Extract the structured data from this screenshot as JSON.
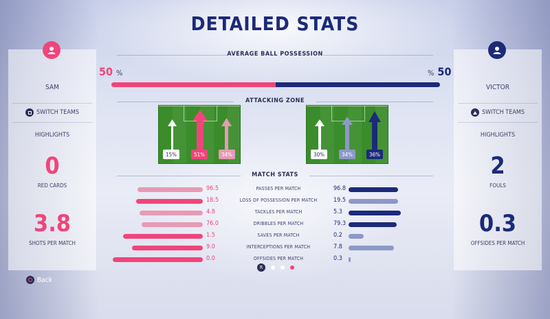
{
  "title": "DETAILED STATS",
  "colors": {
    "home": "#f0457a",
    "home_light": "#e79ab5",
    "away": "#1c2a7a",
    "away_light": "#8e98c8"
  },
  "players": {
    "home": {
      "name": "SAM",
      "switch_label": "SWITCH TEAMS",
      "highlights_label": "HIGHLIGHTS",
      "highlight1_value": "0",
      "highlight1_label": "RED CARDS",
      "highlight2_value": "3.8",
      "highlight2_label": "SHOTS PER MATCH"
    },
    "away": {
      "name": "VICTOR",
      "switch_label": "SWITCH TEAMS",
      "highlights_label": "HIGHLIGHTS",
      "highlight1_value": "2",
      "highlight1_label": "FOULS",
      "highlight2_value": "0.3",
      "highlight2_label": "OFFSIDES PER MATCH"
    }
  },
  "possession": {
    "title": "AVERAGE BALL POSSESSION",
    "home_value": "50",
    "away_value": "50",
    "pct_symbol": "%",
    "home_fraction": 0.5
  },
  "attacking_zone": {
    "title": "ATTACKING ZONE",
    "home": [
      "15%",
      "51%",
      "34%"
    ],
    "away": [
      "30%",
      "34%",
      "36%"
    ]
  },
  "match_stats": {
    "title": "MATCH STATS",
    "rows": [
      {
        "label": "PASSES PER MATCH",
        "home": "96.5",
        "away": "96.8",
        "home_frac": 0.7,
        "away_frac": 0.72,
        "home_strong": false,
        "away_strong": true
      },
      {
        "label": "LOSS OF POSSESSION PER MATCH",
        "home": "18.5",
        "away": "19.5",
        "home_frac": 0.72,
        "away_frac": 0.72,
        "home_strong": true,
        "away_strong": false
      },
      {
        "label": "TACKLES PER MATCH",
        "home": "4.8",
        "away": "5.3",
        "home_frac": 0.68,
        "away_frac": 0.76,
        "home_strong": false,
        "away_strong": true
      },
      {
        "label": "DRIBBLES PER MATCH",
        "home": "76.0",
        "away": "79.3",
        "home_frac": 0.66,
        "away_frac": 0.7,
        "home_strong": false,
        "away_strong": true
      },
      {
        "label": "SAVES PER MATCH",
        "home": "1.5",
        "away": "0.2",
        "home_frac": 0.86,
        "away_frac": 0.22,
        "home_strong": true,
        "away_strong": false
      },
      {
        "label": "INTERCEPTIONS PER MATCH",
        "home": "9.0",
        "away": "7.8",
        "home_frac": 0.76,
        "away_frac": 0.66,
        "home_strong": true,
        "away_strong": false
      },
      {
        "label": "OFFSIDES PER MATCH",
        "home": "0.0",
        "away": "0.3",
        "home_frac": 0.97,
        "away_frac": 0.03,
        "home_strong": true,
        "away_strong": false
      }
    ]
  },
  "pager": {
    "button_label": "R",
    "page_count": 3,
    "active_page": 3
  },
  "back_label": "Back",
  "icons": {
    "avatar": "user-icon",
    "switch_home": "square-button-icon",
    "switch_away": "triangle-button-icon",
    "back": "circle-button-icon"
  }
}
